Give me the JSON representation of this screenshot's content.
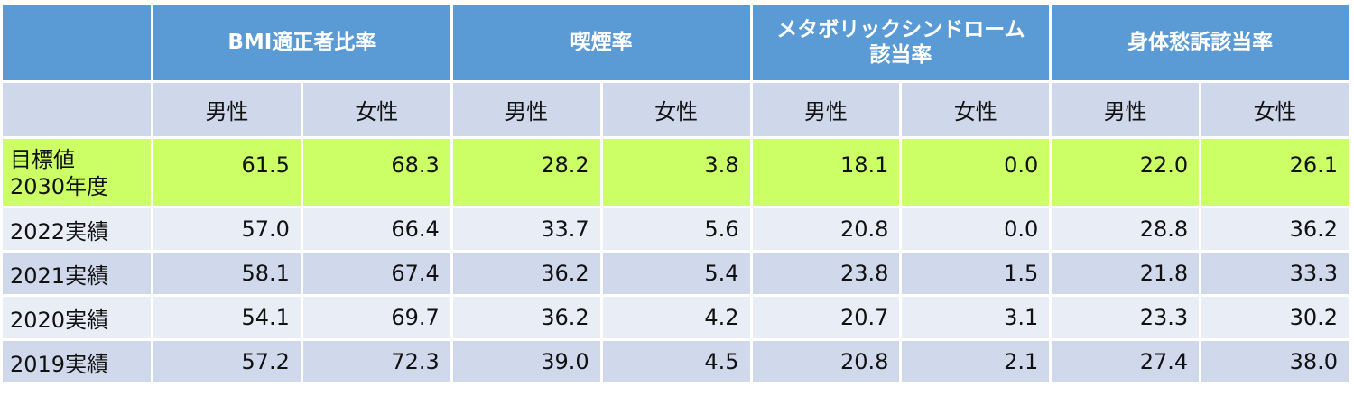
{
  "table": {
    "groups": [
      [
        "BMI適正者比率"
      ],
      [
        "喫煙率"
      ],
      [
        "メタボリックシンドローム",
        "該当率"
      ],
      [
        "身体愁訴該当率"
      ]
    ],
    "subheaders": [
      "男性",
      "女性",
      "男性",
      "女性",
      "男性",
      "女性",
      "男性",
      "女性"
    ],
    "rows": [
      {
        "label": [
          "目標値",
          "2030年度"
        ],
        "values": [
          "61.5",
          "68.3",
          "28.2",
          "3.8",
          "18.1",
          "0.0",
          "22.0",
          "26.1"
        ]
      },
      {
        "label": [
          "2022実績"
        ],
        "values": [
          "57.0",
          "66.4",
          "33.7",
          "5.6",
          "20.8",
          "0.0",
          "28.8",
          "36.2"
        ]
      },
      {
        "label": [
          "2021実績"
        ],
        "values": [
          "58.1",
          "67.4",
          "36.2",
          "5.4",
          "23.8",
          "1.5",
          "21.8",
          "33.3"
        ]
      },
      {
        "label": [
          "2020実績"
        ],
        "values": [
          "54.1",
          "69.7",
          "36.2",
          "4.2",
          "20.7",
          "3.1",
          "23.3",
          "30.2"
        ]
      },
      {
        "label": [
          "2019実績"
        ],
        "values": [
          "57.2",
          "72.3",
          "39.0",
          "4.5",
          "20.8",
          "2.1",
          "27.4",
          "38.0"
        ]
      }
    ]
  }
}
